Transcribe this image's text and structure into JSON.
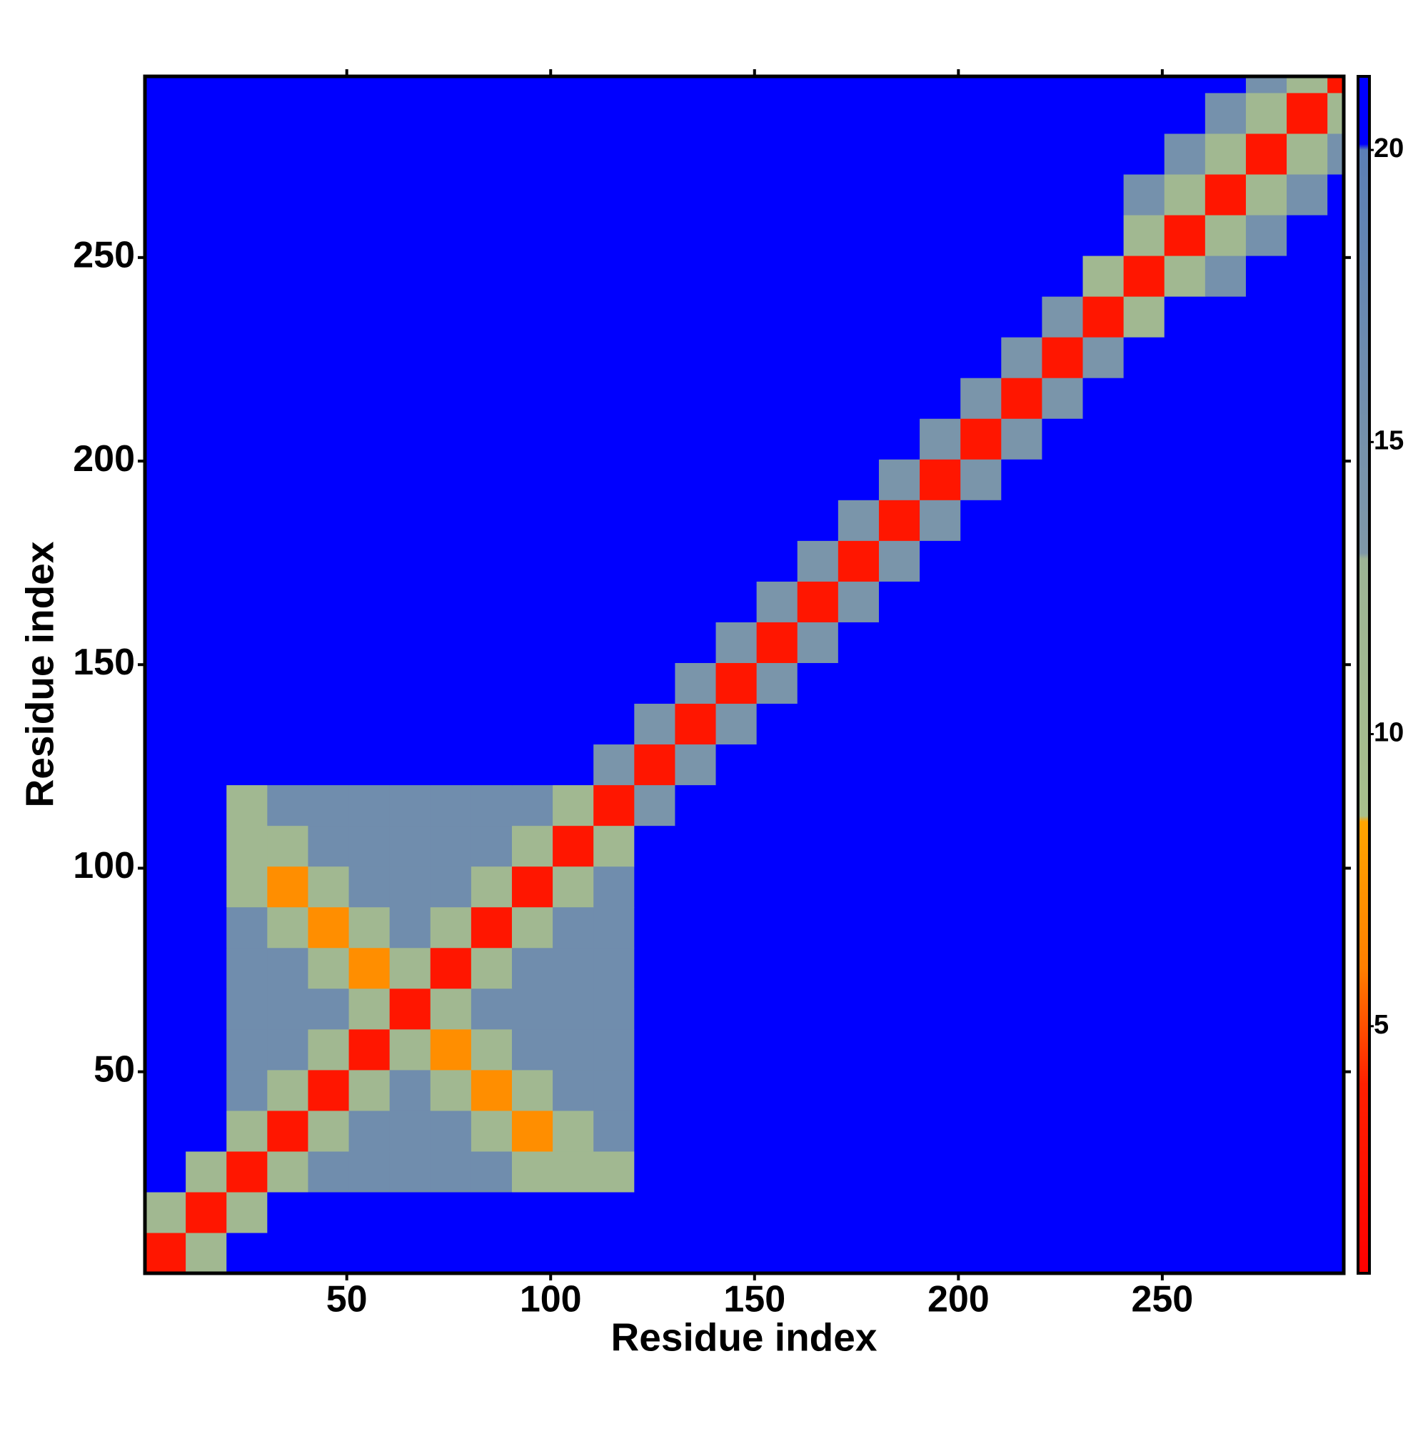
{
  "chart_data": {
    "type": "heatmap",
    "x_label": "Residue index",
    "y_label": "Residue index",
    "bins": [
      0.5,
      10.5,
      20.5,
      30.5,
      40.5,
      50.5,
      60.5,
      70.5,
      80.5,
      90.5,
      100.5,
      110.5,
      120.5,
      130.5,
      140.5,
      150.5,
      160.5,
      170.5,
      180.5,
      190.5,
      200.5,
      210.5,
      220.5,
      230.5,
      240.5,
      250.5,
      260.5,
      270.5,
      280.5,
      290.5,
      294.5
    ],
    "xlim": [
      0.5,
      294.5
    ],
    "ylim": [
      0.5,
      294.5
    ],
    "xticks": [
      50,
      100,
      150,
      200,
      250
    ],
    "yticks": [
      50,
      100,
      150,
      200,
      250
    ],
    "clim": [
      0.77,
      21.26
    ],
    "cticks": [
      5,
      10,
      15,
      20
    ],
    "colorscale": [
      [
        0.77,
        "#ff0000"
      ],
      [
        4,
        "#ff2000"
      ],
      [
        6,
        "#ff7f00"
      ],
      [
        8.5,
        "#ffa500"
      ],
      [
        8.6,
        "#a8bf8c"
      ],
      [
        13,
        "#9cb395"
      ],
      [
        13.1,
        "#7f98a8"
      ],
      [
        20,
        "#5b7fb5"
      ],
      [
        20.1,
        "#0000ff"
      ],
      [
        21.26,
        "#0000ff"
      ]
    ],
    "z": [
      [
        3,
        11,
        21,
        21,
        21,
        21,
        21,
        21,
        21,
        21,
        21,
        21,
        21,
        21,
        21,
        21,
        21,
        21,
        21,
        21,
        21,
        21,
        21,
        21,
        21,
        21,
        21,
        21,
        21,
        21
      ],
      [
        11,
        3,
        11,
        21,
        21,
        21,
        21,
        21,
        21,
        21,
        21,
        21,
        21,
        21,
        21,
        21,
        21,
        21,
        21,
        21,
        21,
        21,
        21,
        21,
        21,
        21,
        21,
        21,
        21,
        21
      ],
      [
        21,
        11,
        3,
        11,
        16,
        16,
        16,
        16,
        16,
        11,
        11,
        11,
        21,
        21,
        21,
        21,
        21,
        21,
        21,
        21,
        21,
        21,
        21,
        21,
        21,
        21,
        21,
        21,
        21,
        21
      ],
      [
        21,
        21,
        11,
        3,
        11,
        16,
        16,
        16,
        11,
        7,
        11,
        16,
        21,
        21,
        21,
        21,
        21,
        21,
        21,
        21,
        21,
        21,
        21,
        21,
        21,
        21,
        21,
        21,
        21,
        21
      ],
      [
        21,
        21,
        16,
        11,
        3,
        11,
        16,
        11,
        7,
        11,
        16,
        16,
        21,
        21,
        21,
        21,
        21,
        21,
        21,
        21,
        21,
        21,
        21,
        21,
        21,
        21,
        21,
        21,
        21,
        21
      ],
      [
        21,
        21,
        16,
        16,
        11,
        3,
        11,
        7,
        11,
        16,
        16,
        16,
        21,
        21,
        21,
        21,
        21,
        21,
        21,
        21,
        21,
        21,
        21,
        21,
        21,
        21,
        21,
        21,
        21,
        21
      ],
      [
        21,
        21,
        16,
        16,
        16,
        11,
        3,
        11,
        16,
        16,
        16,
        16,
        21,
        21,
        21,
        21,
        21,
        21,
        21,
        21,
        21,
        21,
        21,
        21,
        21,
        21,
        21,
        21,
        21,
        21
      ],
      [
        21,
        21,
        16,
        16,
        11,
        7,
        11,
        3,
        11,
        16,
        16,
        16,
        21,
        21,
        21,
        21,
        21,
        21,
        21,
        21,
        21,
        21,
        21,
        21,
        21,
        21,
        21,
        21,
        21,
        21
      ],
      [
        21,
        21,
        16,
        11,
        7,
        11,
        16,
        11,
        3,
        11,
        16,
        16,
        21,
        21,
        21,
        21,
        21,
        21,
        21,
        21,
        21,
        21,
        21,
        21,
        21,
        21,
        21,
        21,
        21,
        21
      ],
      [
        21,
        21,
        11,
        7,
        11,
        16,
        16,
        16,
        11,
        3,
        11,
        16,
        21,
        21,
        21,
        21,
        21,
        21,
        21,
        21,
        21,
        21,
        21,
        21,
        21,
        21,
        21,
        21,
        21,
        21
      ],
      [
        21,
        21,
        11,
        11,
        16,
        16,
        16,
        16,
        16,
        11,
        3,
        11,
        21,
        21,
        21,
        21,
        21,
        21,
        21,
        21,
        21,
        21,
        21,
        21,
        21,
        21,
        21,
        21,
        21,
        21
      ],
      [
        21,
        21,
        11,
        16,
        16,
        16,
        16,
        16,
        16,
        16,
        11,
        3,
        14,
        21,
        21,
        21,
        21,
        21,
        21,
        21,
        21,
        21,
        21,
        21,
        21,
        21,
        21,
        21,
        21,
        21
      ],
      [
        21,
        21,
        21,
        21,
        21,
        21,
        21,
        21,
        21,
        21,
        21,
        14,
        3,
        14,
        21,
        21,
        21,
        21,
        21,
        21,
        21,
        21,
        21,
        21,
        21,
        21,
        21,
        21,
        21,
        21
      ],
      [
        21,
        21,
        21,
        21,
        21,
        21,
        21,
        21,
        21,
        21,
        21,
        21,
        14,
        3,
        14,
        21,
        21,
        21,
        21,
        21,
        21,
        21,
        21,
        21,
        21,
        21,
        21,
        21,
        21,
        21
      ],
      [
        21,
        21,
        21,
        21,
        21,
        21,
        21,
        21,
        21,
        21,
        21,
        21,
        21,
        14,
        3,
        14,
        21,
        21,
        21,
        21,
        21,
        21,
        21,
        21,
        21,
        21,
        21,
        21,
        21,
        21
      ],
      [
        21,
        21,
        21,
        21,
        21,
        21,
        21,
        21,
        21,
        21,
        21,
        21,
        21,
        21,
        14,
        3,
        14,
        21,
        21,
        21,
        21,
        21,
        21,
        21,
        21,
        21,
        21,
        21,
        21,
        21
      ],
      [
        21,
        21,
        21,
        21,
        21,
        21,
        21,
        21,
        21,
        21,
        21,
        21,
        21,
        21,
        21,
        14,
        3,
        14,
        21,
        21,
        21,
        21,
        21,
        21,
        21,
        21,
        21,
        21,
        21,
        21
      ],
      [
        21,
        21,
        21,
        21,
        21,
        21,
        21,
        21,
        21,
        21,
        21,
        21,
        21,
        21,
        21,
        21,
        14,
        3,
        14,
        21,
        21,
        21,
        21,
        21,
        21,
        21,
        21,
        21,
        21,
        21
      ],
      [
        21,
        21,
        21,
        21,
        21,
        21,
        21,
        21,
        21,
        21,
        21,
        21,
        21,
        21,
        21,
        21,
        21,
        14,
        3,
        14,
        21,
        21,
        21,
        21,
        21,
        21,
        21,
        21,
        21,
        21
      ],
      [
        21,
        21,
        21,
        21,
        21,
        21,
        21,
        21,
        21,
        21,
        21,
        21,
        21,
        21,
        21,
        21,
        21,
        21,
        14,
        3,
        14,
        21,
        21,
        21,
        21,
        21,
        21,
        21,
        21,
        21
      ],
      [
        21,
        21,
        21,
        21,
        21,
        21,
        21,
        21,
        21,
        21,
        21,
        21,
        21,
        21,
        21,
        21,
        21,
        21,
        21,
        14,
        3,
        14,
        21,
        21,
        21,
        21,
        21,
        21,
        21,
        21
      ],
      [
        21,
        21,
        21,
        21,
        21,
        21,
        21,
        21,
        21,
        21,
        21,
        21,
        21,
        21,
        21,
        21,
        21,
        21,
        21,
        21,
        14,
        3,
        14,
        21,
        21,
        21,
        21,
        21,
        21,
        21
      ],
      [
        21,
        21,
        21,
        21,
        21,
        21,
        21,
        21,
        21,
        21,
        21,
        21,
        21,
        21,
        21,
        21,
        21,
        21,
        21,
        21,
        21,
        14,
        3,
        14,
        21,
        21,
        21,
        21,
        21,
        21
      ],
      [
        21,
        21,
        21,
        21,
        21,
        21,
        21,
        21,
        21,
        21,
        21,
        21,
        21,
        21,
        21,
        21,
        21,
        21,
        21,
        21,
        21,
        21,
        14,
        3,
        11,
        21,
        21,
        21,
        21,
        21
      ],
      [
        21,
        21,
        21,
        21,
        21,
        21,
        21,
        21,
        21,
        21,
        21,
        21,
        21,
        21,
        21,
        21,
        21,
        21,
        21,
        21,
        21,
        21,
        21,
        11,
        3,
        11,
        15,
        21,
        21,
        21
      ],
      [
        21,
        21,
        21,
        21,
        21,
        21,
        21,
        21,
        21,
        21,
        21,
        21,
        21,
        21,
        21,
        21,
        21,
        21,
        21,
        21,
        21,
        21,
        21,
        21,
        11,
        3,
        11,
        15,
        21,
        21
      ],
      [
        21,
        21,
        21,
        21,
        21,
        21,
        21,
        21,
        21,
        21,
        21,
        21,
        21,
        21,
        21,
        21,
        21,
        21,
        21,
        21,
        21,
        21,
        21,
        21,
        15,
        11,
        3,
        11,
        15,
        21
      ],
      [
        21,
        21,
        21,
        21,
        21,
        21,
        21,
        21,
        21,
        21,
        21,
        21,
        21,
        21,
        21,
        21,
        21,
        21,
        21,
        21,
        21,
        21,
        21,
        21,
        21,
        15,
        11,
        3,
        11,
        15
      ],
      [
        21,
        21,
        21,
        21,
        21,
        21,
        21,
        21,
        21,
        21,
        21,
        21,
        21,
        21,
        21,
        21,
        21,
        21,
        21,
        21,
        21,
        21,
        21,
        21,
        21,
        21,
        15,
        11,
        3,
        11
      ],
      [
        21,
        21,
        21,
        21,
        21,
        21,
        21,
        21,
        21,
        21,
        21,
        21,
        21,
        21,
        21,
        21,
        21,
        21,
        21,
        21,
        21,
        21,
        21,
        21,
        21,
        21,
        21,
        15,
        11,
        3
      ]
    ]
  }
}
